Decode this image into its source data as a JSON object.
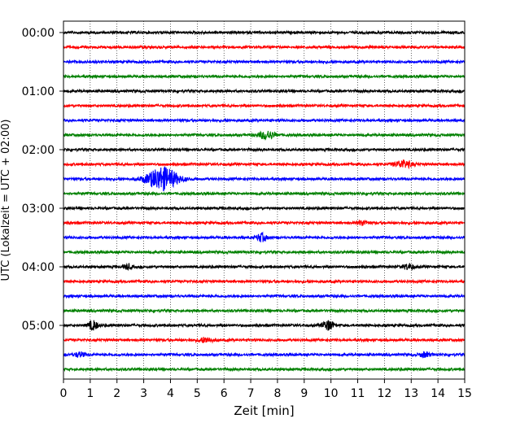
{
  "chart_data": {
    "type": "line",
    "title": "",
    "xlabel": "Zeit  [min]",
    "ylabel": "UTC (Lokalzeit = UTC + 02:00)",
    "xlim": [
      0,
      15
    ],
    "xticks": [
      "0",
      "1",
      "2",
      "3",
      "4",
      "5",
      "6",
      "7",
      "8",
      "9",
      "10",
      "11",
      "12",
      "13",
      "14",
      "15"
    ],
    "yticks": [
      "00:00",
      "01:00",
      "02:00",
      "03:00",
      "04:00",
      "05:00"
    ],
    "grid": "vertical-dotted",
    "trace_interval_minutes": 15,
    "trace_count": 24,
    "trace_colors": [
      "#000000",
      "#ff0000",
      "#0000ff",
      "#008000"
    ],
    "events": [
      {
        "trace": 7,
        "x": 7.6,
        "amplitude": 2.2,
        "width": 0.45
      },
      {
        "trace": 9,
        "x": 12.7,
        "amplitude": 2.0,
        "width": 0.45
      },
      {
        "trace": 10,
        "x": 3.7,
        "amplitude": 6.5,
        "width": 0.8
      },
      {
        "trace": 13,
        "x": 11.2,
        "amplitude": 1.4,
        "width": 0.25
      },
      {
        "trace": 14,
        "x": 7.4,
        "amplitude": 2.2,
        "width": 0.25
      },
      {
        "trace": 16,
        "x": 2.4,
        "amplitude": 1.4,
        "width": 0.2
      },
      {
        "trace": 16,
        "x": 12.9,
        "amplitude": 1.5,
        "width": 0.3
      },
      {
        "trace": 20,
        "x": 1.1,
        "amplitude": 2.6,
        "width": 0.25
      },
      {
        "trace": 20,
        "x": 9.9,
        "amplitude": 2.6,
        "width": 0.3
      },
      {
        "trace": 21,
        "x": 5.3,
        "amplitude": 1.4,
        "width": 0.4
      },
      {
        "trace": 22,
        "x": 0.6,
        "amplitude": 1.3,
        "width": 0.3
      },
      {
        "trace": 22,
        "x": 13.5,
        "amplitude": 1.3,
        "width": 0.3
      }
    ]
  }
}
